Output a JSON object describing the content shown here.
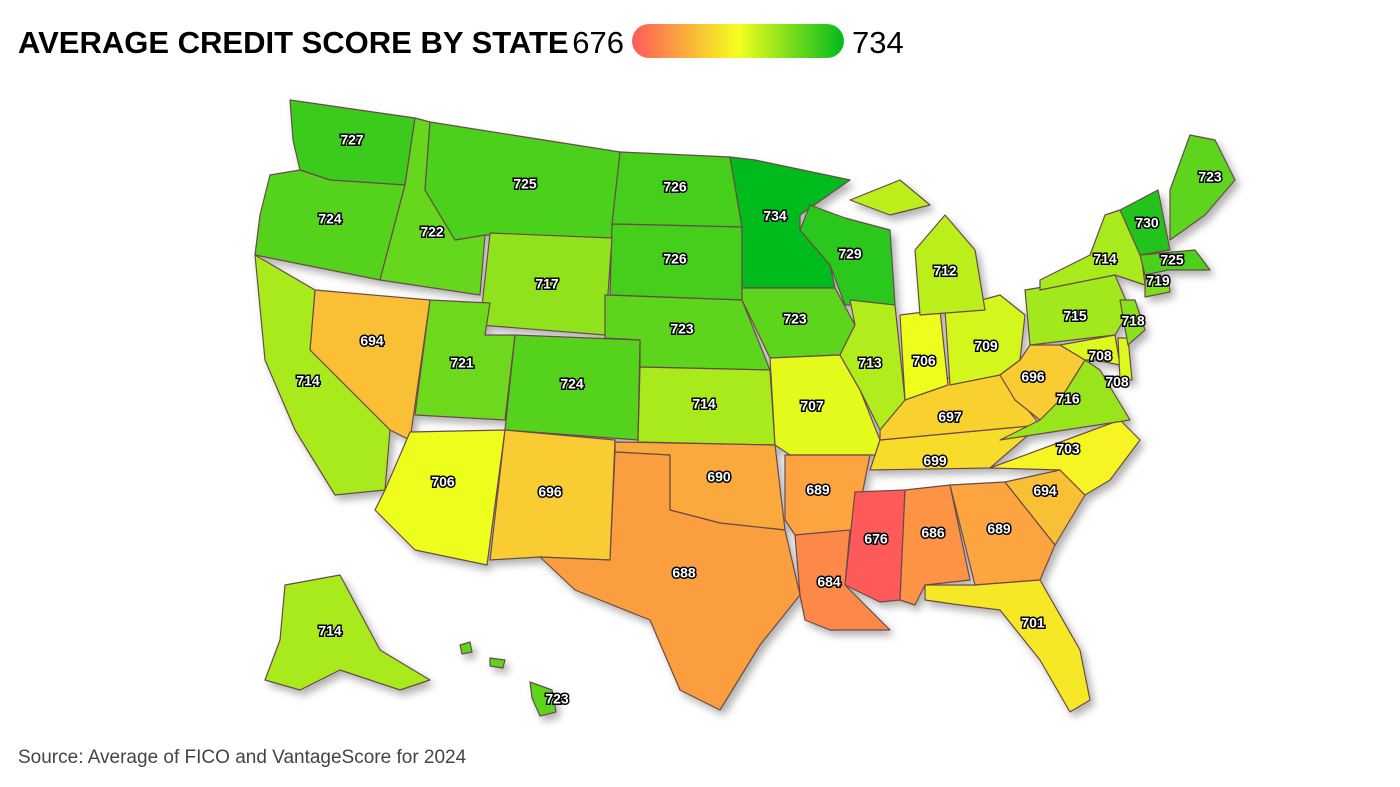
{
  "chart_data": {
    "type": "choropleth",
    "title": "AVERAGE CREDIT SCORE BY STATE",
    "colorlim": [
      676,
      734
    ],
    "colors": [
      "#ff5a5a",
      "#f5ff1e",
      "#00bb1c"
    ],
    "values": [
      727,
      724,
      722,
      725,
      726,
      726,
      717,
      723,
      734,
      729,
      723,
      694,
      714,
      721,
      724,
      706,
      696,
      714,
      690,
      688,
      707,
      689,
      684,
      676,
      686,
      689,
      701,
      694,
      703,
      699,
      697,
      713,
      706,
      709,
      712,
      715,
      714,
      696,
      716,
      708,
      708,
      718,
      719,
      725,
      730,
      723,
      714,
      723
    ],
    "source": "Source: Average of FICO and VantageScore for 2024"
  }
}
